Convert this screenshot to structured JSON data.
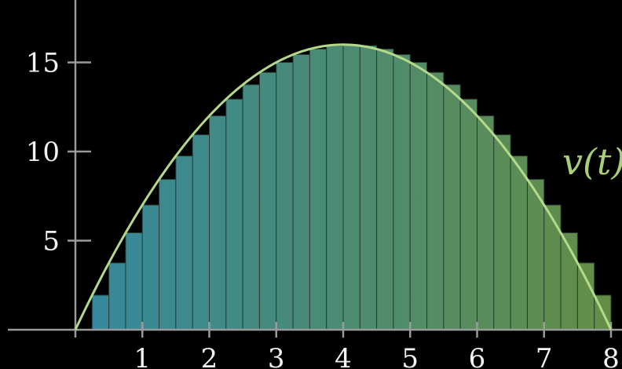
{
  "chart_data": {
    "type": "area",
    "function_label": "v(t)",
    "function": "v(t) = t(8 - t)",
    "xlim": [
      0,
      8
    ],
    "ylim": [
      0,
      17.5
    ],
    "x_ticks": [
      1,
      2,
      3,
      4,
      5,
      6,
      7,
      8
    ],
    "y_ticks": [
      5,
      10,
      15
    ],
    "rectangle_width": 0.25,
    "rectangles": [
      {
        "t": 0.25,
        "v": 1.94
      },
      {
        "t": 0.5,
        "v": 3.75
      },
      {
        "t": 0.75,
        "v": 5.44
      },
      {
        "t": 1.0,
        "v": 7.0
      },
      {
        "t": 1.25,
        "v": 8.44
      },
      {
        "t": 1.5,
        "v": 9.75
      },
      {
        "t": 1.75,
        "v": 10.94
      },
      {
        "t": 2.0,
        "v": 12.0
      },
      {
        "t": 2.25,
        "v": 12.94
      },
      {
        "t": 2.5,
        "v": 13.75
      },
      {
        "t": 2.75,
        "v": 14.44
      },
      {
        "t": 3.0,
        "v": 15.0
      },
      {
        "t": 3.25,
        "v": 15.44
      },
      {
        "t": 3.5,
        "v": 15.75
      },
      {
        "t": 3.75,
        "v": 15.94
      },
      {
        "t": 4.0,
        "v": 16.0
      },
      {
        "t": 4.25,
        "v": 15.94
      },
      {
        "t": 4.5,
        "v": 15.75
      },
      {
        "t": 4.75,
        "v": 15.44
      },
      {
        "t": 5.0,
        "v": 15.0
      },
      {
        "t": 5.25,
        "v": 14.44
      },
      {
        "t": 5.5,
        "v": 13.75
      },
      {
        "t": 5.75,
        "v": 12.94
      },
      {
        "t": 6.0,
        "v": 12.0
      },
      {
        "t": 6.25,
        "v": 10.94
      },
      {
        "t": 6.5,
        "v": 9.75
      },
      {
        "t": 6.75,
        "v": 8.44
      },
      {
        "t": 7.0,
        "v": 7.0
      },
      {
        "t": 7.25,
        "v": 5.44
      },
      {
        "t": 7.5,
        "v": 3.75
      },
      {
        "t": 7.75,
        "v": 1.94
      }
    ],
    "grid": false,
    "legend": "none",
    "colors": {
      "background": "#000000",
      "axis": "#9a9a9a",
      "tick_label": "#f2f2f2",
      "curve": "#b4d98a",
      "curve_label": "#a8cf78",
      "fill_start": "#3fa6c2",
      "fill_end": "#7aad55"
    }
  }
}
